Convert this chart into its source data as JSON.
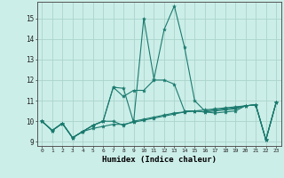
{
  "xlabel": "Humidex (Indice chaleur)",
  "background_color": "#cceee8",
  "grid_color": "#aad4cc",
  "line_color": "#1a7a6e",
  "xlim": [
    -0.5,
    23.5
  ],
  "ylim": [
    8.8,
    15.8
  ],
  "yticks": [
    9,
    10,
    11,
    12,
    13,
    14,
    15
  ],
  "xticks": [
    0,
    1,
    2,
    3,
    4,
    5,
    6,
    7,
    8,
    9,
    10,
    11,
    12,
    13,
    14,
    15,
    16,
    17,
    18,
    19,
    20,
    21,
    22,
    23
  ],
  "series": [
    [
      10.0,
      9.55,
      9.9,
      9.2,
      9.5,
      9.65,
      9.75,
      9.85,
      9.85,
      9.95,
      10.05,
      10.15,
      10.25,
      10.35,
      10.45,
      10.5,
      10.55,
      10.6,
      10.65,
      10.7,
      10.75,
      10.8,
      9.1,
      10.9
    ],
    [
      10.0,
      9.55,
      9.9,
      9.2,
      9.5,
      9.8,
      10.0,
      11.65,
      11.6,
      9.95,
      15.0,
      12.05,
      14.45,
      15.6,
      13.6,
      11.0,
      10.5,
      10.55,
      10.6,
      10.65,
      10.75,
      10.8,
      9.1,
      10.9
    ],
    [
      10.0,
      9.55,
      9.9,
      9.2,
      9.5,
      9.8,
      10.0,
      11.65,
      11.2,
      11.5,
      11.5,
      12.0,
      12.0,
      11.8,
      10.5,
      10.5,
      10.45,
      10.5,
      10.55,
      10.6,
      10.75,
      10.8,
      9.1,
      10.9
    ],
    [
      10.0,
      9.55,
      9.9,
      9.2,
      9.5,
      9.8,
      10.0,
      10.0,
      9.8,
      10.0,
      10.1,
      10.2,
      10.3,
      10.4,
      10.45,
      10.5,
      10.45,
      10.4,
      10.45,
      10.5,
      10.75,
      10.8,
      9.1,
      10.9
    ]
  ]
}
